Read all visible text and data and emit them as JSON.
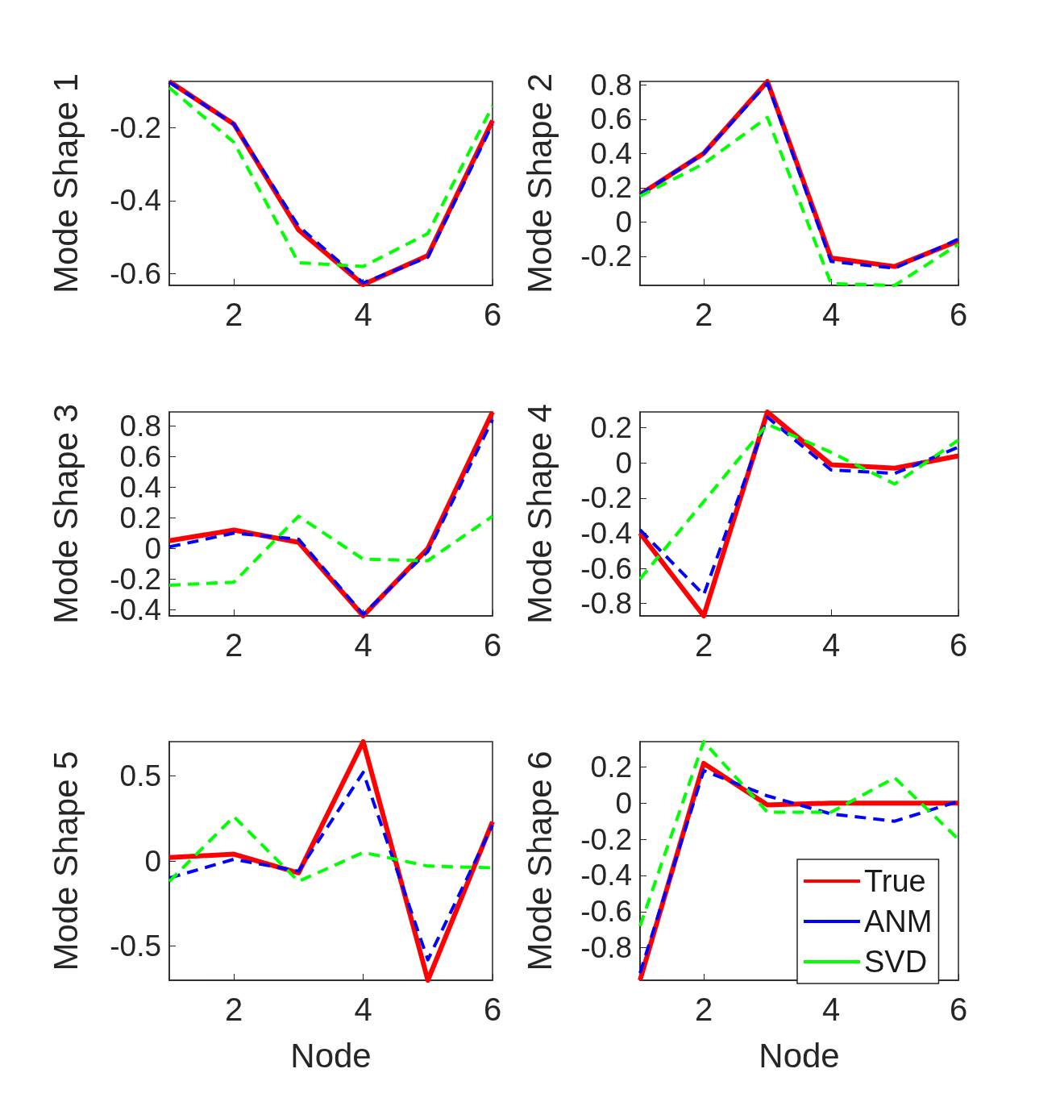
{
  "chart_data": [
    {
      "type": "line",
      "ylabel": "Mode Shape 1",
      "x": [
        1,
        2,
        3,
        4,
        5,
        6
      ],
      "xlim": [
        1,
        6
      ],
      "xticks": [
        2,
        4,
        6
      ],
      "ylim": [
        -0.632,
        -0.073
      ],
      "yticks": [
        -0.6,
        -0.4,
        -0.2
      ],
      "legend": false,
      "grid": false,
      "series": [
        {
          "color": "#ff0000",
          "line_style": "solid",
          "values": [
            -0.073,
            -0.19,
            -0.48,
            -0.63,
            -0.55,
            -0.18
          ]
        },
        {
          "color": "#0000ff",
          "line_style": "dashed",
          "values": [
            -0.075,
            -0.19,
            -0.47,
            -0.625,
            -0.555,
            -0.19
          ]
        },
        {
          "color": "#00ff00",
          "line_style": "dashed",
          "values": [
            -0.09,
            -0.24,
            -0.57,
            -0.58,
            -0.49,
            -0.14
          ]
        }
      ]
    },
    {
      "type": "line",
      "ylabel": "Mode Shape 2",
      "x": [
        1,
        2,
        3,
        4,
        5,
        6
      ],
      "xlim": [
        1,
        6
      ],
      "xticks": [
        2,
        4,
        6
      ],
      "ylim": [
        -0.37,
        0.82
      ],
      "yticks": [
        -0.2,
        0,
        0.2,
        0.4,
        0.6,
        0.8
      ],
      "legend": false,
      "grid": false,
      "series": [
        {
          "color": "#ff0000",
          "line_style": "solid",
          "values": [
            0.16,
            0.4,
            0.82,
            -0.21,
            -0.26,
            -0.11
          ]
        },
        {
          "color": "#0000ff",
          "line_style": "dashed",
          "values": [
            0.16,
            0.4,
            0.81,
            -0.23,
            -0.27,
            -0.1
          ]
        },
        {
          "color": "#00ff00",
          "line_style": "dashed",
          "values": [
            0.15,
            0.34,
            0.61,
            -0.36,
            -0.37,
            -0.13
          ]
        }
      ]
    },
    {
      "type": "line",
      "ylabel": "Mode Shape 3",
      "x": [
        1,
        2,
        3,
        4,
        5,
        6
      ],
      "xlim": [
        1,
        6
      ],
      "xticks": [
        2,
        4,
        6
      ],
      "ylim": [
        -0.44,
        0.89
      ],
      "yticks": [
        -0.4,
        -0.2,
        0,
        0.2,
        0.4,
        0.6,
        0.8
      ],
      "legend": false,
      "grid": false,
      "series": [
        {
          "color": "#ff0000",
          "line_style": "solid",
          "values": [
            0.05,
            0.12,
            0.04,
            -0.44,
            0.0,
            0.89
          ]
        },
        {
          "color": "#0000ff",
          "line_style": "dashed",
          "values": [
            0.01,
            0.1,
            0.06,
            -0.43,
            -0.02,
            0.84
          ]
        },
        {
          "color": "#00ff00",
          "line_style": "dashed",
          "values": [
            -0.24,
            -0.22,
            0.21,
            -0.07,
            -0.08,
            0.21
          ]
        }
      ]
    },
    {
      "type": "line",
      "ylabel": "Mode Shape 4",
      "x": [
        1,
        2,
        3,
        4,
        5,
        6
      ],
      "xlim": [
        1,
        6
      ],
      "xticks": [
        2,
        4,
        6
      ],
      "ylim": [
        -0.87,
        0.29
      ],
      "yticks": [
        -0.8,
        -0.6,
        -0.4,
        -0.2,
        0,
        0.2
      ],
      "legend": false,
      "grid": false,
      "series": [
        {
          "color": "#ff0000",
          "line_style": "solid",
          "values": [
            -0.4,
            -0.87,
            0.29,
            -0.01,
            -0.03,
            0.04
          ]
        },
        {
          "color": "#0000ff",
          "line_style": "dashed",
          "values": [
            -0.38,
            -0.75,
            0.26,
            -0.04,
            -0.06,
            0.09
          ]
        },
        {
          "color": "#00ff00",
          "line_style": "dashed",
          "values": [
            -0.66,
            -0.22,
            0.22,
            0.06,
            -0.12,
            0.13
          ]
        }
      ]
    },
    {
      "type": "line",
      "xlabel": "Node",
      "ylabel": "Mode Shape 5",
      "x": [
        1,
        2,
        3,
        4,
        5,
        6
      ],
      "xlim": [
        1,
        6
      ],
      "xticks": [
        2,
        4,
        6
      ],
      "ylim": [
        -0.7,
        0.7
      ],
      "yticks": [
        -0.5,
        0,
        0.5
      ],
      "legend": false,
      "grid": false,
      "series": [
        {
          "color": "#ff0000",
          "line_style": "solid",
          "values": [
            0.02,
            0.04,
            -0.07,
            0.7,
            -0.7,
            0.23
          ]
        },
        {
          "color": "#0000ff",
          "line_style": "dashed",
          "values": [
            -0.1,
            0.01,
            -0.06,
            0.52,
            -0.58,
            0.21
          ]
        },
        {
          "color": "#00ff00",
          "line_style": "dashed",
          "values": [
            -0.12,
            0.26,
            -0.12,
            0.05,
            -0.03,
            -0.04
          ]
        }
      ]
    },
    {
      "type": "line",
      "xlabel": "Node",
      "ylabel": "Mode Shape 6",
      "x": [
        1,
        2,
        3,
        4,
        5,
        6
      ],
      "xlim": [
        1,
        6
      ],
      "xticks": [
        2,
        4,
        6
      ],
      "ylim": [
        -0.98,
        0.34
      ],
      "yticks": [
        -0.8,
        -0.6,
        -0.4,
        -0.2,
        0,
        0.2
      ],
      "legend": "bottom right",
      "grid": false,
      "series": [
        {
          "name": "True",
          "color": "#ff0000",
          "line_style": "solid",
          "values": [
            -0.98,
            0.22,
            -0.01,
            0,
            0,
            0
          ]
        },
        {
          "name": "ANM",
          "color": "#0000ff",
          "line_style": "dashed",
          "values": [
            -0.94,
            0.18,
            0.04,
            -0.06,
            -0.1,
            0.01
          ]
        },
        {
          "name": "SVD",
          "color": "#00ff00",
          "line_style": "dashed",
          "values": [
            -0.68,
            0.34,
            -0.05,
            -0.05,
            0.14,
            -0.2
          ]
        }
      ]
    }
  ]
}
